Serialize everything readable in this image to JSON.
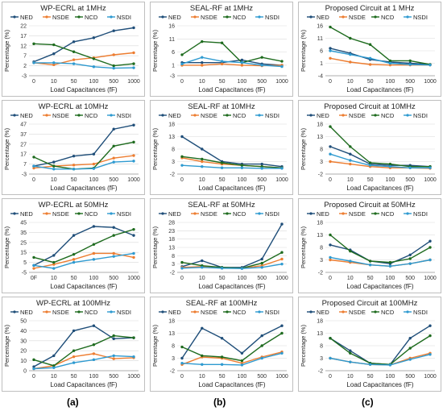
{
  "legend_labels": [
    "NED",
    "NSDE",
    "NCD",
    "NSDI"
  ],
  "series_colors": {
    "NED": "#1f4e79",
    "NSDE": "#ed7d31",
    "NCD": "#1e6b1e",
    "NSDI": "#2e9ad0"
  },
  "panel_labels": [
    "(a)",
    "(b)",
    "(c)"
  ],
  "chart_data": [
    {
      "type": "line",
      "title": "WP-ECRL at 1MHz",
      "xlabel": "Load Capacitances (fF)",
      "ylabel": "Percentage (%)",
      "categories": [
        "0",
        "10",
        "50",
        "100",
        "500",
        "1000"
      ],
      "ylim": [
        -3,
        22
      ],
      "yticks": [
        -3,
        2,
        7,
        12,
        17,
        22
      ],
      "series": [
        {
          "name": "NED",
          "values": [
            4,
            8,
            14,
            16,
            19.5,
            21
          ]
        },
        {
          "name": "NSDE",
          "values": [
            3.5,
            2.5,
            5,
            6,
            7.5,
            8.5
          ]
        },
        {
          "name": "NCD",
          "values": [
            13,
            12.5,
            9,
            5.5,
            2,
            3
          ]
        },
        {
          "name": "NSDI",
          "values": [
            3.5,
            3.5,
            3,
            1.5,
            0.8,
            1
          ]
        }
      ]
    },
    {
      "type": "line",
      "title": "SEAL-RF at 1MHz",
      "xlabel": "Load Capacitances (fF)",
      "ylabel": "Percentage (%)",
      "categories": [
        "0",
        "10",
        "50",
        "100",
        "500",
        "1000"
      ],
      "ylim": [
        -3,
        16
      ],
      "yticks": [
        -3,
        1,
        6,
        11,
        16
      ],
      "series": [
        {
          "name": "NED",
          "values": [
            2,
            2,
            2,
            3,
            1.5,
            1
          ]
        },
        {
          "name": "NSDE",
          "values": [
            1,
            1,
            1.5,
            1,
            0.8,
            1
          ]
        },
        {
          "name": "NCD",
          "values": [
            5,
            10,
            9.5,
            2,
            4,
            2.5
          ]
        },
        {
          "name": "NSDI",
          "values": [
            1.5,
            4,
            2.5,
            2,
            1,
            0.5
          ]
        }
      ]
    },
    {
      "type": "line",
      "title": "Proposed Circuit at 1 MHz",
      "xlabel": "Load Capacitances (fF)",
      "ylabel": "Percentage (%)",
      "categories": [
        "0",
        "10",
        "50",
        "100",
        "500",
        "1000"
      ],
      "ylim": [
        -4,
        16
      ],
      "yticks": [
        -4,
        1,
        6,
        11,
        16
      ],
      "series": [
        {
          "name": "NED",
          "values": [
            7,
            5,
            2.5,
            1.5,
            1,
            0.5
          ]
        },
        {
          "name": "NSDE",
          "values": [
            3,
            1.5,
            0.5,
            0.3,
            0.3,
            0.3
          ]
        },
        {
          "name": "NCD",
          "values": [
            15.5,
            11,
            8.5,
            2,
            2,
            0.5
          ]
        },
        {
          "name": "NSDI",
          "values": [
            6,
            4.5,
            3,
            1,
            0.5,
            0.3
          ]
        }
      ]
    },
    {
      "type": "line",
      "title": "WP-ECRL at 10MHz",
      "xlabel": "Load Capacitances (fF)",
      "ylabel": "Percentage (%)",
      "categories": [
        "0",
        "10",
        "50",
        "100",
        "500",
        "1000"
      ],
      "ylim": [
        -3,
        47
      ],
      "yticks": [
        -3,
        7,
        17,
        27,
        37,
        47
      ],
      "series": [
        {
          "name": "NED",
          "values": [
            5,
            9,
            15,
            17,
            42,
            46
          ]
        },
        {
          "name": "NSDE",
          "values": [
            3,
            5,
            6,
            7,
            13,
            15.5
          ]
        },
        {
          "name": "NCD",
          "values": [
            14,
            5,
            2,
            3,
            25,
            29
          ]
        },
        {
          "name": "NSDI",
          "values": [
            5,
            2,
            2,
            2.5,
            9,
            10
          ]
        }
      ]
    },
    {
      "type": "line",
      "title": "SEAL-RF at 10MHz",
      "xlabel": "Load Capacitances (fF)",
      "ylabel": "Percentage (%)",
      "categories": [
        "0",
        "10",
        "50",
        "100",
        "500",
        "1000"
      ],
      "ylim": [
        -2,
        18
      ],
      "yticks": [
        -2,
        3,
        8,
        13,
        18
      ],
      "series": [
        {
          "name": "NED",
          "values": [
            13,
            8,
            3,
            2,
            2,
            1
          ]
        },
        {
          "name": "NSDE",
          "values": [
            4.5,
            3,
            2,
            1.5,
            1,
            0.5
          ]
        },
        {
          "name": "NCD",
          "values": [
            5,
            4,
            2.5,
            1.5,
            1,
            0.5
          ]
        },
        {
          "name": "NSDI",
          "values": [
            1.5,
            1,
            0.5,
            0.5,
            0.3,
            0.3
          ]
        }
      ]
    },
    {
      "type": "line",
      "title": "Proposed Circuit at 10MHz",
      "xlabel": "Load Capacitances (fF)",
      "ylabel": "Percentage (%)",
      "categories": [
        "0",
        "10",
        "50",
        "100",
        "500",
        "1000"
      ],
      "ylim": [
        -2,
        18
      ],
      "yticks": [
        -2,
        3,
        8,
        13,
        18
      ],
      "series": [
        {
          "name": "NED",
          "values": [
            9,
            6,
            2,
            1.5,
            1.5,
            1
          ]
        },
        {
          "name": "NSDE",
          "values": [
            3,
            2,
            1,
            0.5,
            0.5,
            0.3
          ]
        },
        {
          "name": "NCD",
          "values": [
            17,
            9,
            2.5,
            2,
            1,
            1
          ]
        },
        {
          "name": "NSDI",
          "values": [
            6,
            3.5,
            1.5,
            1,
            0.5,
            0.5
          ]
        }
      ]
    },
    {
      "type": "line",
      "title": "WP-ECRL at 50MHz",
      "xlabel": "Load Capacitances (fF)",
      "ylabel": "Percentage (%)",
      "categories": [
        "0F",
        "10",
        "50",
        "100",
        "500",
        "1000"
      ],
      "ylim": [
        -5,
        45
      ],
      "yticks": [
        -5,
        5,
        15,
        25,
        35,
        45
      ],
      "series": [
        {
          "name": "NED",
          "values": [
            2,
            12,
            32,
            41,
            40,
            32
          ]
        },
        {
          "name": "NSDE",
          "values": [
            -1,
            3,
            8,
            14,
            14,
            10
          ]
        },
        {
          "name": "NCD",
          "values": [
            10,
            5,
            13,
            23,
            32,
            38
          ]
        },
        {
          "name": "NSDI",
          "values": [
            2,
            -1,
            5,
            8,
            11,
            14
          ]
        }
      ]
    },
    {
      "type": "line",
      "title": "SEAL-RF at 50MHz",
      "xlabel": "Load Capacitances (fF)",
      "ylabel": "Percentage (%)",
      "categories": [
        "0",
        "10",
        "50",
        "100",
        "500",
        "1000"
      ],
      "ylim": [
        -2,
        28
      ],
      "yticks": [
        -2,
        3,
        8,
        13,
        18,
        23,
        28
      ],
      "series": [
        {
          "name": "NED",
          "values": [
            1.5,
            5,
            1,
            1,
            6,
            27
          ]
        },
        {
          "name": "NSDE",
          "values": [
            1,
            1.5,
            0.5,
            0.5,
            2,
            6
          ]
        },
        {
          "name": "NCD",
          "values": [
            4,
            2,
            1,
            0.5,
            3.5,
            10
          ]
        },
        {
          "name": "NSDI",
          "values": [
            0.5,
            1,
            0.5,
            0.3,
            1,
            3
          ]
        }
      ]
    },
    {
      "type": "line",
      "title": "Proposed Circuit at 50MHz",
      "xlabel": "Load Capacitances (fF)",
      "ylabel": "Percentage (%)",
      "categories": [
        "0",
        "10",
        "50",
        "100",
        "500",
        "1000"
      ],
      "ylim": [
        -2,
        18
      ],
      "yticks": [
        -2,
        3,
        8,
        13,
        18
      ],
      "series": [
        {
          "name": "NED",
          "values": [
            9,
            7,
            2.5,
            1.5,
            5,
            10.5
          ]
        },
        {
          "name": "NSDE",
          "values": [
            3,
            2,
            1,
            0.5,
            1.5,
            3
          ]
        },
        {
          "name": "NCD",
          "values": [
            13,
            6.5,
            2.5,
            2,
            3.5,
            8
          ]
        },
        {
          "name": "NSDI",
          "values": [
            4,
            2.5,
            1,
            0.5,
            1.5,
            3
          ]
        }
      ]
    },
    {
      "type": "line",
      "title": "WP-ECRL at 100MHz",
      "xlabel": "Load Capacitances (fF)",
      "ylabel": "Percentage (%)",
      "categories": [
        "0",
        "10",
        "50",
        "100",
        "500",
        "1000"
      ],
      "ylim": [
        0,
        50
      ],
      "yticks": [
        0,
        10,
        20,
        30,
        40,
        50
      ],
      "series": [
        {
          "name": "NED",
          "values": [
            4,
            15,
            40,
            45,
            32,
            33
          ]
        },
        {
          "name": "NSDE",
          "values": [
            2,
            5,
            14,
            17,
            12,
            13
          ]
        },
        {
          "name": "NCD",
          "values": [
            11,
            5,
            20,
            26,
            35,
            33
          ]
        },
        {
          "name": "NSDI",
          "values": [
            2,
            3,
            8,
            11,
            15,
            14
          ]
        }
      ]
    },
    {
      "type": "line",
      "title": "SEAL-RF at 100MHz",
      "xlabel": "Load Capacitances (fF)",
      "ylabel": "Percentage (%)",
      "categories": [
        "0",
        "10",
        "50",
        "100",
        "500",
        "1000"
      ],
      "ylim": [
        -2,
        18
      ],
      "yticks": [
        -2,
        3,
        8,
        13,
        18
      ],
      "series": [
        {
          "name": "NED",
          "values": [
            3,
            15,
            11,
            5,
            12,
            16
          ]
        },
        {
          "name": "NSDE",
          "values": [
            0.5,
            3.5,
            3,
            1,
            3.5,
            5.5
          ]
        },
        {
          "name": "NCD",
          "values": [
            7.5,
            4,
            3.5,
            2,
            8,
            13
          ]
        },
        {
          "name": "NSDI",
          "values": [
            1,
            0.5,
            0.5,
            0.3,
            3,
            5
          ]
        }
      ]
    },
    {
      "type": "line",
      "title": "Proposed Circuit at 100MHz",
      "xlabel": "Load Capacitances (fF)",
      "ylabel": "Percentage (%)",
      "categories": [
        "0",
        "10",
        "50",
        "100",
        "500",
        "1000"
      ],
      "ylim": [
        -2,
        18
      ],
      "yticks": [
        -2,
        3,
        8,
        13,
        18
      ],
      "series": [
        {
          "name": "NED",
          "values": [
            11,
            6,
            1,
            0.5,
            11,
            16
          ]
        },
        {
          "name": "NSDE",
          "values": [
            3,
            1.5,
            0.5,
            0.3,
            3,
            5
          ]
        },
        {
          "name": "NCD",
          "values": [
            11,
            5,
            1,
            0.5,
            7,
            12
          ]
        },
        {
          "name": "NSDI",
          "values": [
            3,
            1.5,
            0.5,
            0.3,
            2.5,
            4.5
          ]
        }
      ]
    }
  ]
}
